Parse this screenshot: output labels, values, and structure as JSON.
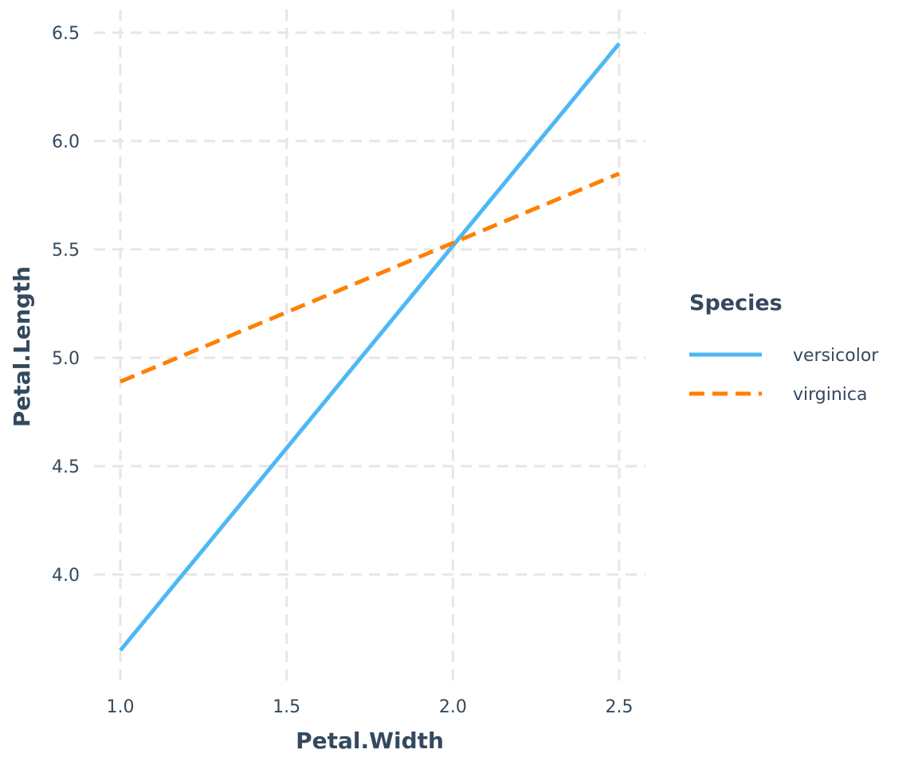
{
  "chart_data": {
    "type": "line",
    "title": "",
    "xlabel": "Petal.Width",
    "ylabel": "Petal.Length",
    "xlim": [
      0.92,
      2.57
    ],
    "ylim": [
      3.5,
      6.55
    ],
    "x_ticks": [
      1.0,
      1.5,
      2.0,
      2.5
    ],
    "x_tick_labels": [
      "1.0",
      "1.5",
      "2.0",
      "2.5"
    ],
    "y_ticks": [
      4.0,
      4.5,
      5.0,
      5.5,
      6.0,
      6.5
    ],
    "y_tick_labels": [
      "4.0",
      "4.5",
      "5.0",
      "5.5",
      "6.0",
      "6.5"
    ],
    "grid": true,
    "legend_title": "Species",
    "legend_position": "right",
    "series": [
      {
        "name": "versicolor",
        "color": "#4db8f5",
        "dash": "solid",
        "x": [
          1.0,
          2.5
        ],
        "y": [
          3.65,
          6.45
        ]
      },
      {
        "name": "virginica",
        "color": "#ff7f00",
        "dash": "dashed",
        "x": [
          1.0,
          2.5
        ],
        "y": [
          4.89,
          5.85
        ]
      }
    ]
  }
}
